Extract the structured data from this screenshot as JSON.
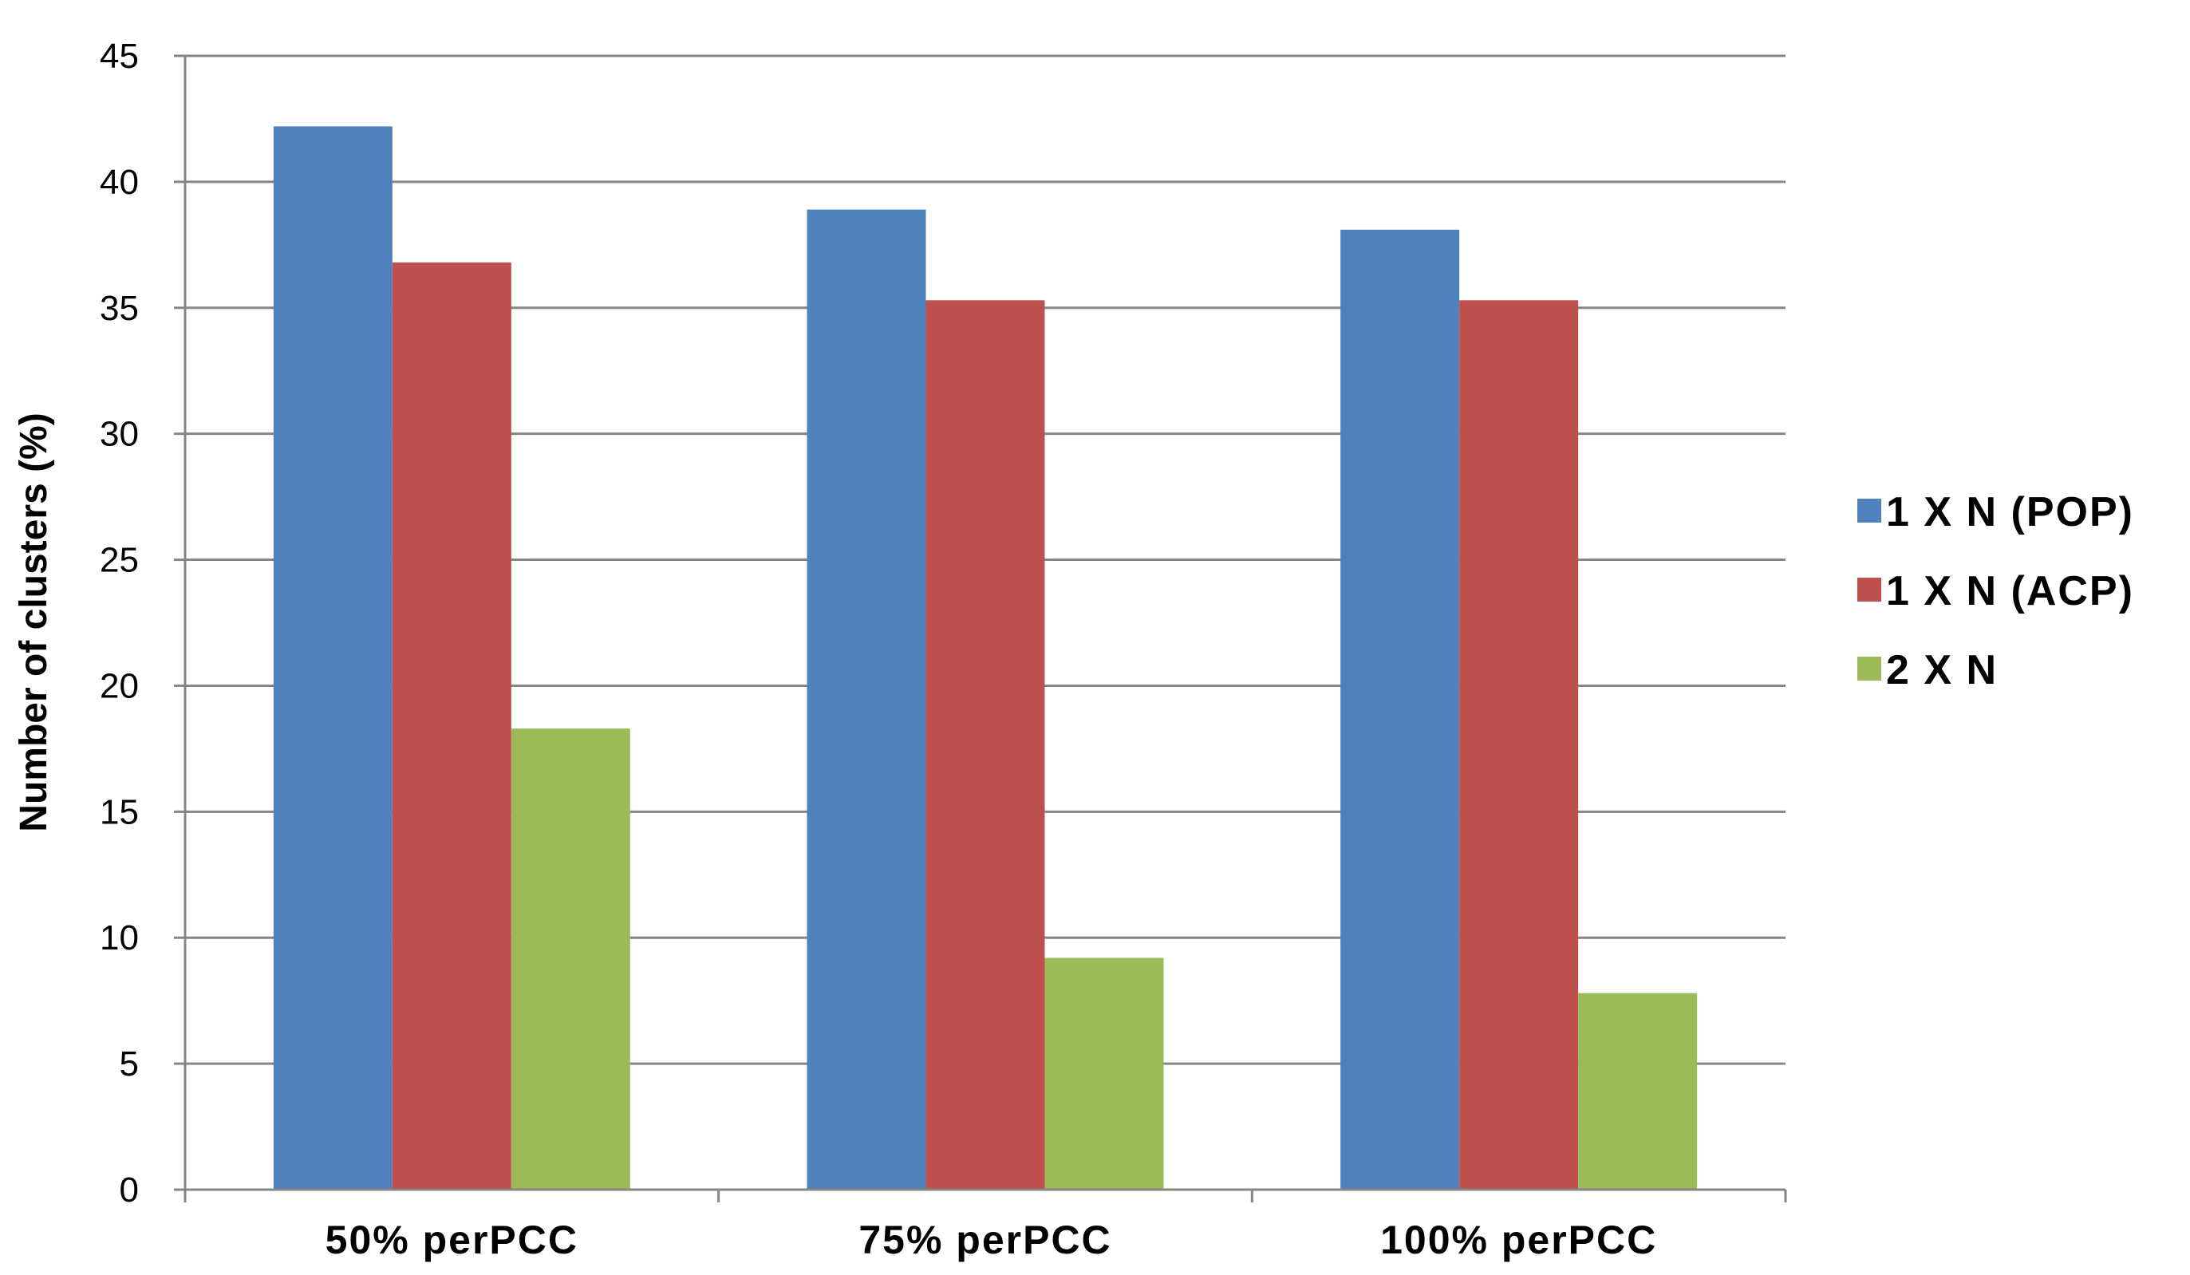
{
  "chart_data": {
    "type": "bar",
    "title": "",
    "xlabel": "",
    "ylabel": "Number of clusters  (%)",
    "ylim": [
      0,
      45
    ],
    "yticks": [
      0,
      5,
      10,
      15,
      20,
      25,
      30,
      35,
      40,
      45
    ],
    "grid": true,
    "legend_position": "right",
    "categories": [
      "50% perPCC",
      "75% perPCC",
      "100% perPCC"
    ],
    "series": [
      {
        "name": "1 X N (POP)",
        "color": "#4F81BD",
        "values": [
          42.2,
          38.9,
          38.1
        ]
      },
      {
        "name": "1 X N (ACP)",
        "color": "#C0504D",
        "values": [
          36.8,
          35.3,
          35.3
        ]
      },
      {
        "name": "2 X N",
        "color": "#9BBB59",
        "values": [
          18.3,
          9.2,
          7.8
        ]
      }
    ]
  }
}
